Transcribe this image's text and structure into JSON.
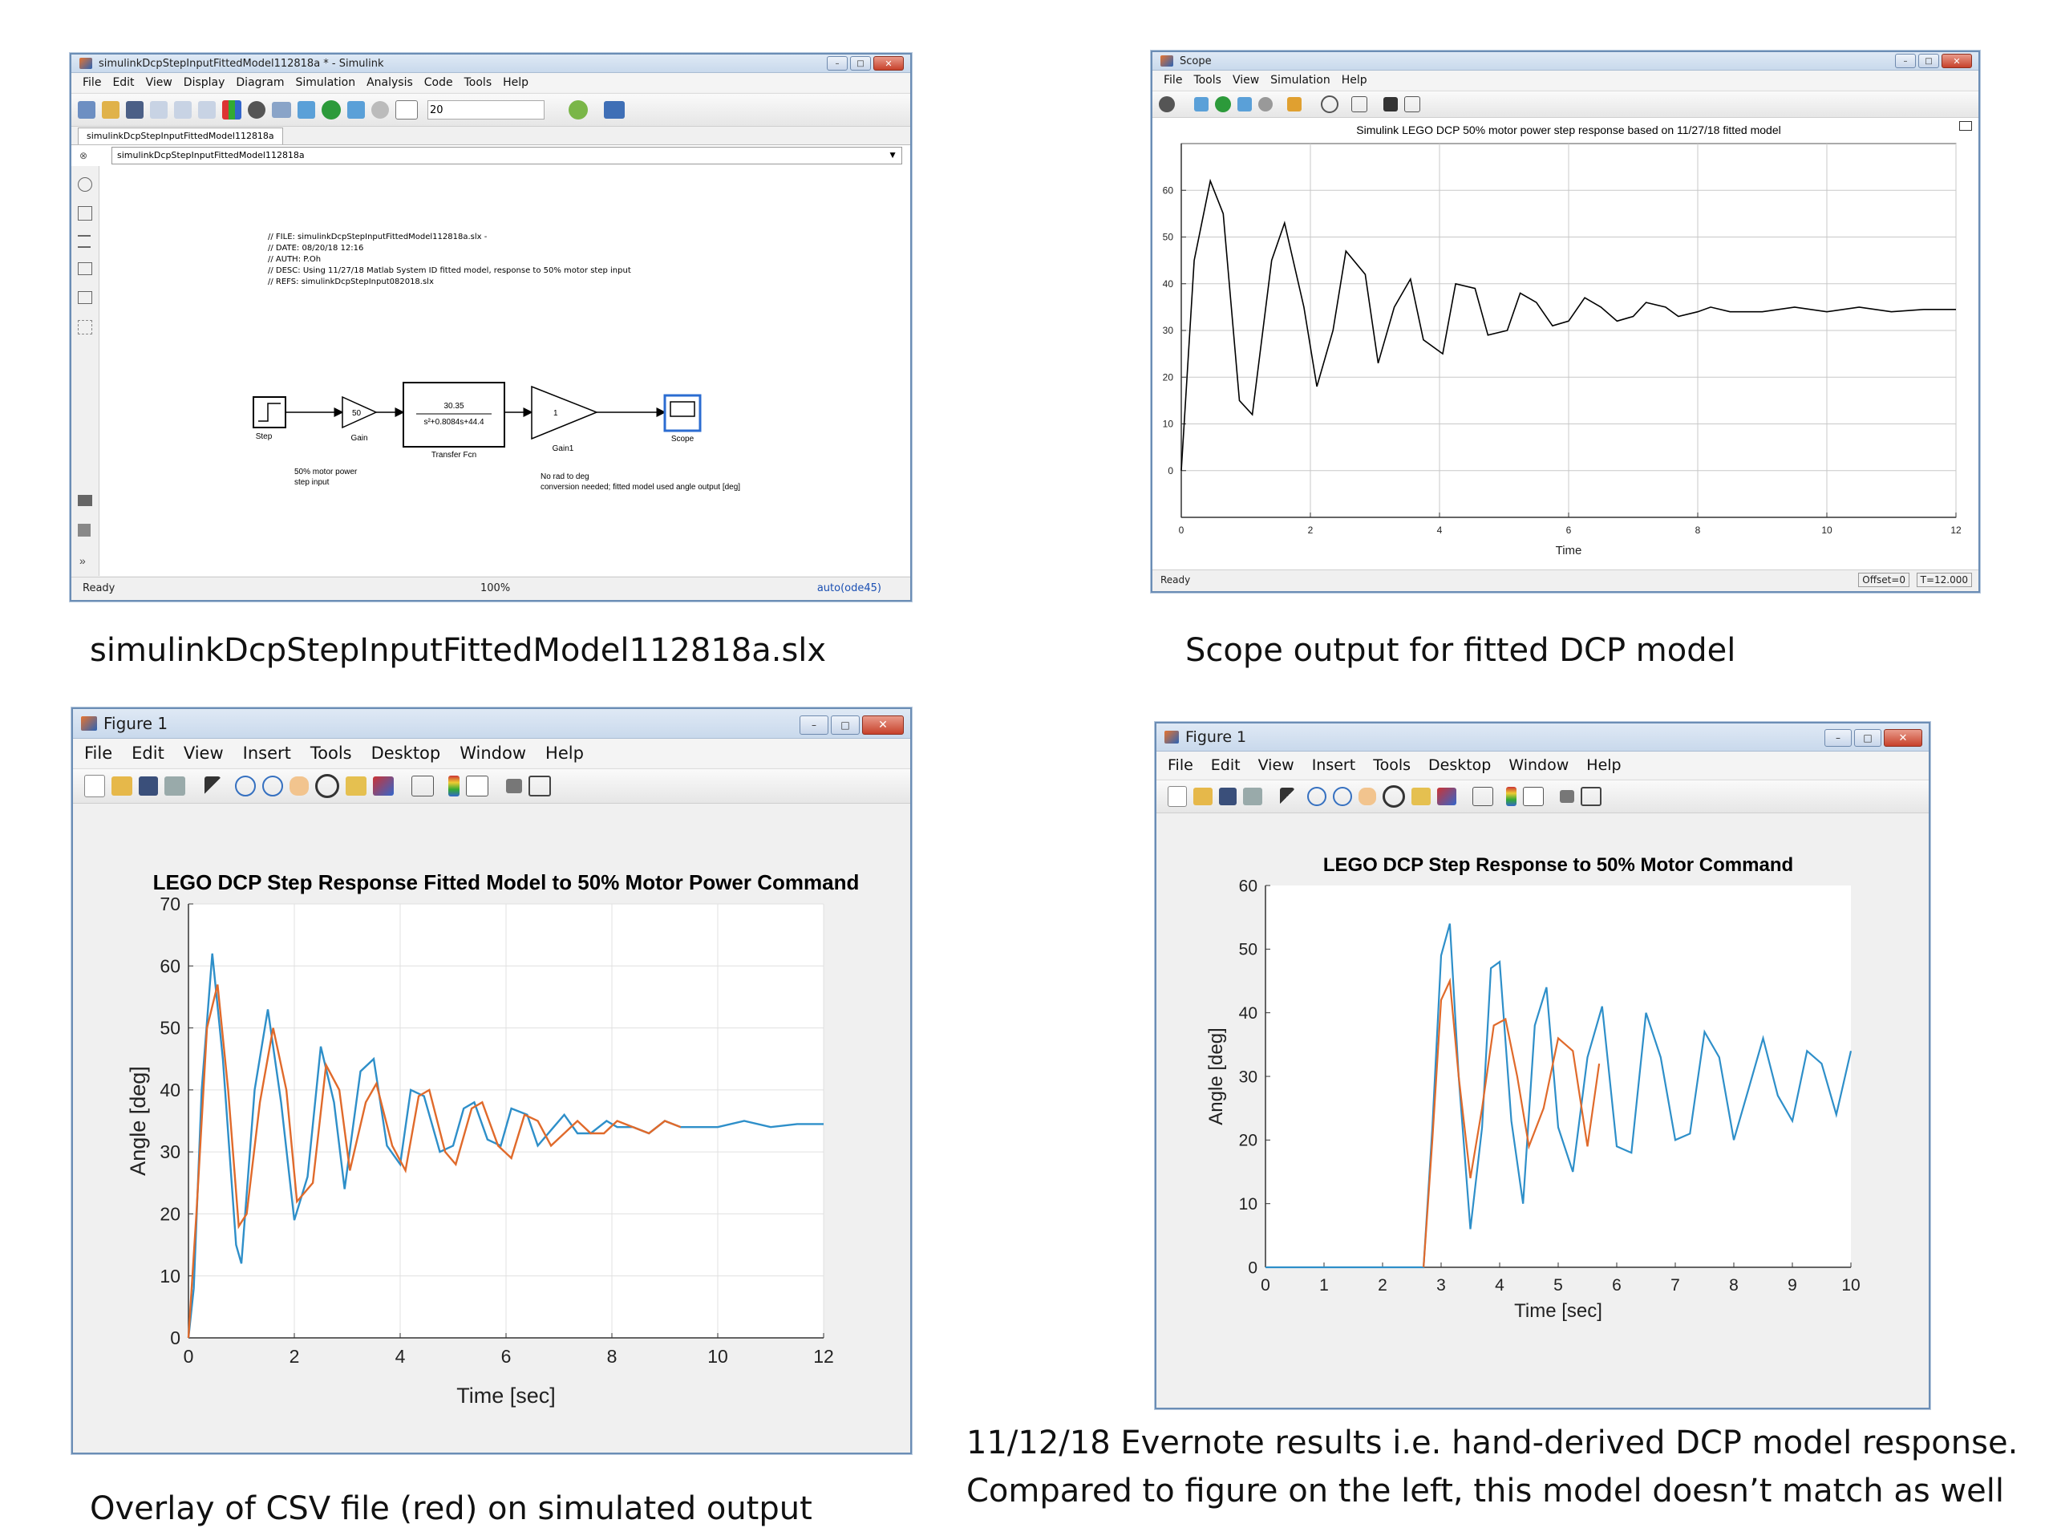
{
  "simulink": {
    "title": "simulinkDcpStepInputFittedModel112818a * - Simulink",
    "menu": [
      "File",
      "Edit",
      "View",
      "Display",
      "Diagram",
      "Simulation",
      "Analysis",
      "Code",
      "Tools",
      "Help"
    ],
    "stop_time": "20",
    "tab": "simulinkDcpStepInputFittedModel112818a",
    "address": "simulinkDcpStepInputFittedModel112818a",
    "comments": [
      "// FILE: simulinkDcpStepInputFittedModel112818a.slx -",
      "// DATE: 08/20/18 12:16",
      "// AUTH: P.Oh",
      "// DESC: Using 11/27/18 Matlab System ID fitted model, response to 50% motor step input",
      "// REFS: simulinkDcpStepInput082018.slx"
    ],
    "blocks": {
      "step_label": "Step",
      "gain_value": "50",
      "gain_label": "Gain",
      "tf_num": "30.35",
      "tf_den": "s²+0.8084s+44.4",
      "tf_label": "Transfer Fcn",
      "gain1_value": "1",
      "gain1_label": "Gain1",
      "scope_label": "Scope"
    },
    "notes": {
      "motor_line1": "50% motor power",
      "motor_line2": "step input",
      "deg_line1": "No rad to deg",
      "deg_line2": "conversion needed; fitted model used angle output [deg]"
    },
    "status": {
      "left": "Ready",
      "center": "100%",
      "right": "auto(ode45)"
    }
  },
  "scope": {
    "title": "Scope",
    "menu": [
      "File",
      "Tools",
      "View",
      "Simulation",
      "Help"
    ],
    "status": {
      "left": "Ready",
      "offset": "Offset=0",
      "time": "T=12.000"
    }
  },
  "figure_overlay": {
    "title": "Figure 1",
    "menu": [
      "File",
      "Edit",
      "View",
      "Insert",
      "Tools",
      "Desktop",
      "Window",
      "Help"
    ]
  },
  "figure_hand": {
    "title": "Figure 1",
    "menu": [
      "File",
      "Edit",
      "View",
      "Insert",
      "Tools",
      "Desktop",
      "Window",
      "Help"
    ]
  },
  "captions": {
    "simulink": "simulinkDcpStepInputFittedModel112818a.slx",
    "scope": "Scope output for fitted DCP model",
    "overlay": "Overlay of CSV file (red) on simulated output",
    "hand_line1": "11/12/18 Evernote results i.e. hand-derived DCP model response.",
    "hand_line2": "Compared to figure on the left, this model doesn’t match as well"
  },
  "colors": {
    "blue": "#2e8fc9",
    "orange": "#e06a2b",
    "scope_line": "#000000"
  },
  "chart_data": [
    {
      "type": "line",
      "title": "Simulink LEGO DCP 50% motor power step response based on 11/27/18 fitted model",
      "xlabel": "Time",
      "ylabel": "",
      "xlim": [
        0,
        12
      ],
      "ylim": [
        -10,
        70
      ],
      "xticks": [
        0,
        2,
        4,
        6,
        8,
        10,
        12
      ],
      "yticks": [
        0,
        10,
        20,
        30,
        40,
        50,
        60
      ],
      "grid": true,
      "series": [
        {
          "x": [
            0,
            0.2,
            0.45,
            0.65,
            0.9,
            1.1,
            1.4,
            1.6,
            1.9,
            2.1,
            2.35,
            2.55,
            2.85,
            3.05,
            3.3,
            3.55,
            3.75,
            4.05,
            4.25,
            4.55,
            4.75,
            5.05,
            5.25,
            5.5,
            5.75,
            6.0,
            6.25,
            6.5,
            6.75,
            7.0,
            7.2,
            7.5,
            7.7,
            8.0,
            8.2,
            8.5,
            8.7,
            9.0,
            9.5,
            10,
            10.5,
            11,
            11.5,
            12
          ],
          "y": [
            0,
            45,
            62,
            55,
            15,
            12,
            45,
            53,
            35,
            18,
            30,
            47,
            42,
            23,
            35,
            41,
            28,
            25,
            40,
            39,
            29,
            30,
            38,
            36,
            31,
            32,
            37,
            35,
            32,
            33,
            36,
            35,
            33,
            34,
            35,
            34,
            34,
            34,
            35,
            34,
            35,
            34,
            34.5,
            34.5
          ]
        }
      ]
    },
    {
      "type": "line",
      "title": "LEGO DCP Step Response Fitted Model to 50% Motor Power Command",
      "xlabel": "Time [sec]",
      "ylabel": "Angle [deg]",
      "xlim": [
        0,
        12
      ],
      "ylim": [
        0,
        70
      ],
      "xticks": [
        0,
        2,
        4,
        6,
        8,
        10,
        12
      ],
      "yticks": [
        0,
        10,
        20,
        30,
        40,
        50,
        60,
        70
      ],
      "grid": true,
      "series": [
        {
          "x": [
            0,
            0.1,
            0.25,
            0.45,
            0.65,
            0.9,
            1.0,
            1.25,
            1.5,
            1.75,
            2.0,
            2.25,
            2.5,
            2.75,
            2.95,
            3.25,
            3.5,
            3.75,
            4.0,
            4.2,
            4.45,
            4.75,
            5.0,
            5.2,
            5.4,
            5.65,
            5.9,
            6.1,
            6.4,
            6.6,
            6.9,
            7.1,
            7.35,
            7.6,
            7.9,
            8.1,
            8.4,
            8.7,
            9.0,
            9.3,
            9.6,
            10,
            10.5,
            11,
            11.5,
            12
          ],
          "y": [
            0,
            8,
            40,
            62,
            45,
            15,
            12,
            40,
            53,
            38,
            19,
            26,
            47,
            38,
            24,
            43,
            45,
            31,
            28,
            40,
            39,
            30,
            31,
            37,
            38,
            32,
            31,
            37,
            36,
            31,
            34,
            36,
            33,
            33,
            35,
            34,
            34,
            33,
            35,
            34,
            34,
            34,
            35,
            34,
            34.5,
            34.5
          ]
        },
        {
          "x": [
            0,
            0.15,
            0.35,
            0.55,
            0.75,
            0.95,
            1.1,
            1.35,
            1.6,
            1.85,
            2.05,
            2.35,
            2.6,
            2.85,
            3.05,
            3.35,
            3.55,
            3.85,
            4.1,
            4.35,
            4.55,
            4.85,
            5.05,
            5.35,
            5.55,
            5.85,
            6.1,
            6.35,
            6.6,
            6.85,
            7.1,
            7.35,
            7.6,
            7.85,
            8.1,
            8.4,
            8.7,
            9.0,
            9.3
          ],
          "y": [
            0,
            20,
            50,
            57,
            40,
            18,
            20,
            38,
            50,
            40,
            22,
            25,
            44,
            40,
            27,
            38,
            41,
            31,
            27,
            39,
            40,
            30,
            28,
            37,
            38,
            31,
            29,
            36,
            35,
            31,
            33,
            35,
            33,
            33,
            35,
            34,
            33,
            35,
            34
          ]
        }
      ]
    },
    {
      "type": "line",
      "title": "LEGO DCP Step Response to 50% Motor Command",
      "xlabel": "Time [sec]",
      "ylabel": "Angle [deg]",
      "xlim": [
        0,
        10
      ],
      "ylim": [
        0,
        60
      ],
      "xticks": [
        0,
        1,
        2,
        3,
        4,
        5,
        6,
        7,
        8,
        9,
        10
      ],
      "yticks": [
        0,
        10,
        20,
        30,
        40,
        50,
        60
      ],
      "grid": false,
      "series": [
        {
          "x": [
            0,
            2.7,
            2.85,
            3.0,
            3.15,
            3.3,
            3.5,
            3.7,
            3.85,
            4.0,
            4.2,
            4.4,
            4.6,
            4.8,
            5.0,
            5.25,
            5.5,
            5.75,
            6.0,
            6.25,
            6.5,
            6.75,
            7.0,
            7.25,
            7.5,
            7.75,
            8.0,
            8.25,
            8.5,
            8.75,
            9.0,
            9.25,
            9.5,
            9.75,
            10
          ],
          "y": [
            0,
            0,
            22,
            49,
            54,
            30,
            6,
            22,
            47,
            48,
            23,
            10,
            38,
            44,
            22,
            15,
            33,
            41,
            19,
            18,
            40,
            33,
            20,
            21,
            37,
            33,
            20,
            28,
            36,
            27,
            23,
            34,
            32,
            24,
            34
          ]
        },
        {
          "x": [
            2.7,
            2.85,
            3.0,
            3.15,
            3.3,
            3.5,
            3.7,
            3.9,
            4.1,
            4.3,
            4.5,
            4.75,
            5.0,
            5.25,
            5.5,
            5.7
          ],
          "y": [
            0,
            20,
            42,
            45,
            30,
            14,
            25,
            38,
            39,
            30,
            19,
            25,
            36,
            34,
            19,
            32
          ]
        }
      ]
    }
  ]
}
